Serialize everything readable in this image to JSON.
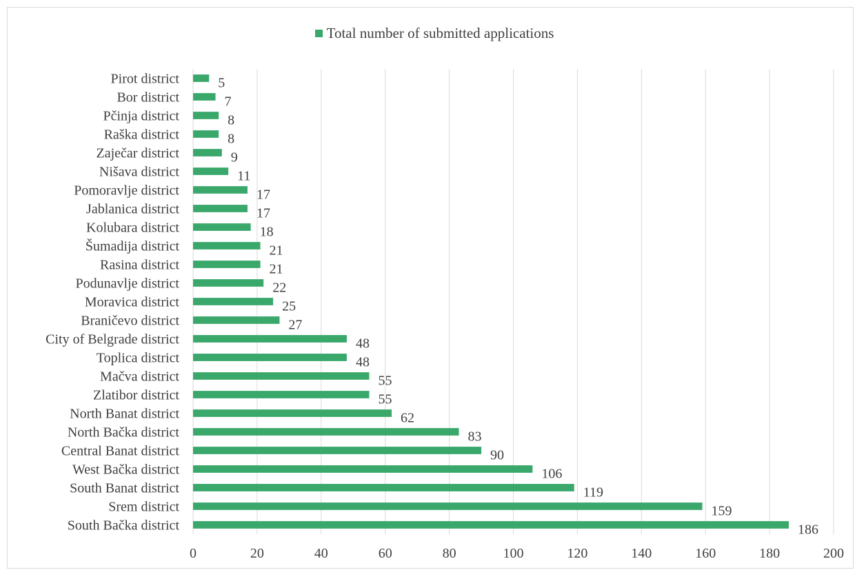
{
  "chart_data": {
    "type": "bar",
    "orientation": "horizontal",
    "categories": [
      "Pirot district",
      "Bor district",
      "Pčinja district",
      "Raška district",
      "Zaječar district",
      "Nišava district",
      "Pomoravlje district",
      "Jablanica district",
      "Kolubara district",
      "Šumadija district",
      "Rasina district",
      "Podunavlje district",
      "Moravica district",
      "Braničevo district",
      "City of Belgrade district",
      "Toplica district",
      "Mačva district",
      "Zlatibor district",
      "North Banat district",
      "North Bačka district",
      "Central Banat district",
      "West Bačka district",
      "South Banat district",
      "Srem district",
      "South Bačka district"
    ],
    "series": [
      {
        "name": "Total number of submitted applications",
        "values": [
          5,
          7,
          8,
          8,
          9,
          11,
          17,
          17,
          18,
          21,
          21,
          22,
          25,
          27,
          48,
          48,
          55,
          55,
          62,
          83,
          90,
          106,
          119,
          159,
          186
        ]
      }
    ],
    "xlim": [
      0,
      200
    ],
    "xticks": [
      0,
      20,
      40,
      60,
      80,
      100,
      120,
      140,
      160,
      180,
      200
    ],
    "grid": true,
    "legend_position": "top",
    "data_labels": true,
    "colors": {
      "bar": "#3aa86b",
      "grid": "#d9d9d9",
      "text": "#404040"
    }
  }
}
